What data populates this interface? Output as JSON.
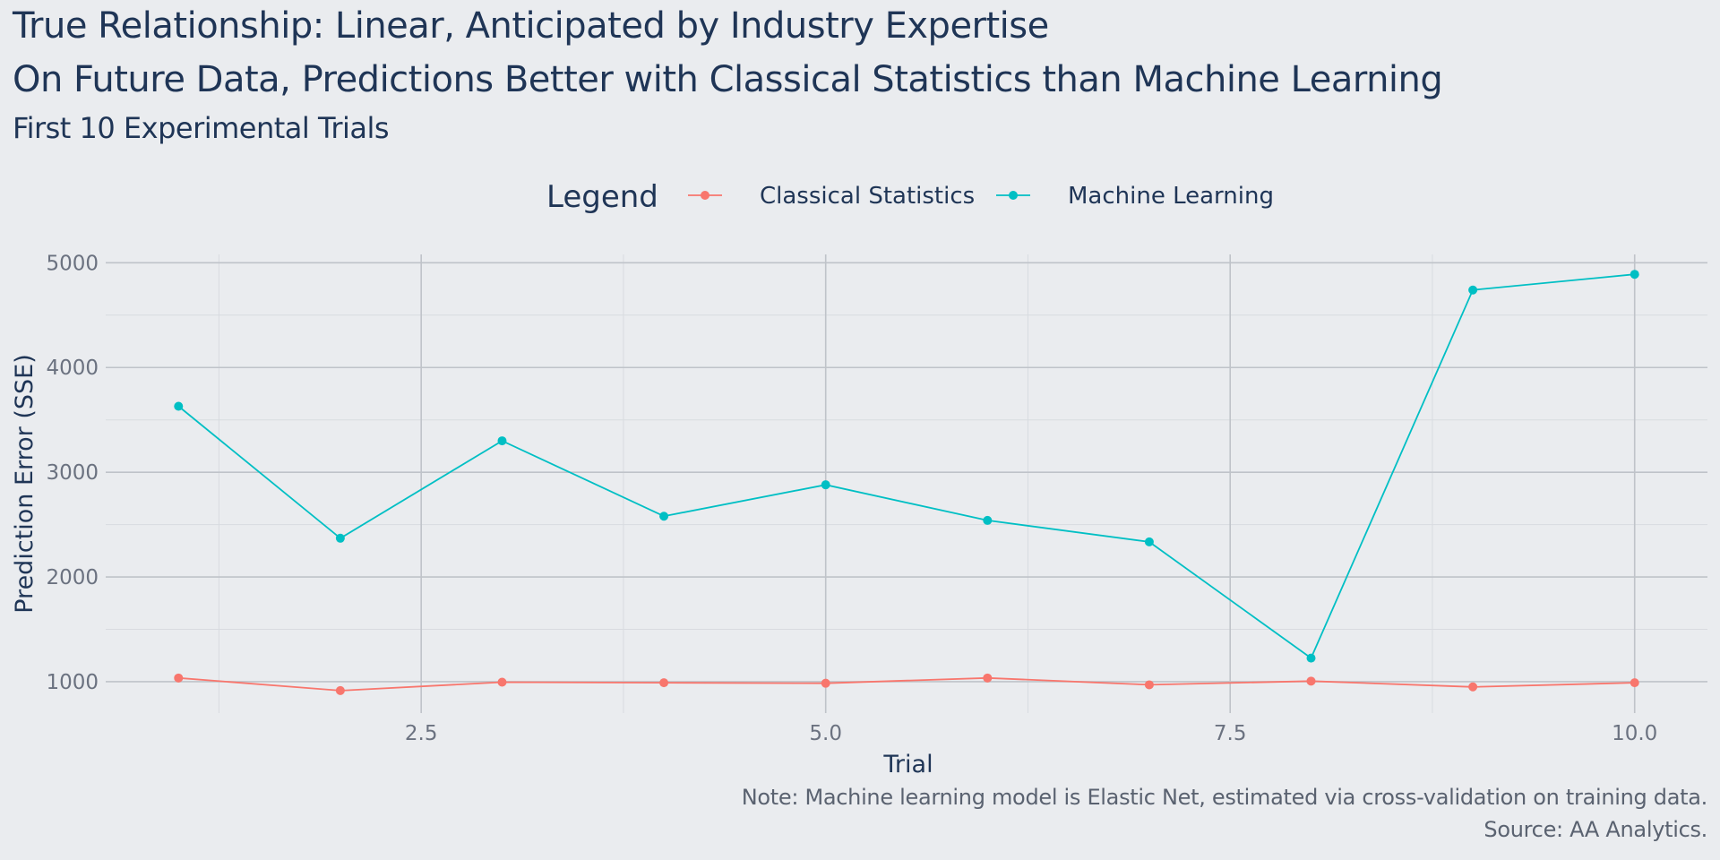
{
  "title": "True Relationship: Linear, Anticipated by Industry Expertise",
  "title2": "On Future Data, Predictions Better with Classical Statistics than Machine Learning",
  "subtitle": "First 10 Experimental Trials",
  "caption_note": "Note: Machine learning model is Elastic Net, estimated via cross-validation on training data.",
  "caption_source": "Source: AA Analytics.",
  "chart_data": {
    "type": "line",
    "title": "True Relationship: Linear, Anticipated by Industry Expertise",
    "subtitle": "On Future Data, Predictions Better with Classical Statistics than Machine Learning",
    "xlabel": "Trial",
    "ylabel": "Prediction Error (SSE)",
    "xlim": [
      0.55,
      10.45
    ],
    "ylim": [
      700,
      5080
    ],
    "x_ticks": [
      2.5,
      5.0,
      7.5,
      10.0
    ],
    "x_tick_labels": [
      "2.5",
      "5.0",
      "7.5",
      "10.0"
    ],
    "y_ticks": [
      1000,
      2000,
      3000,
      4000,
      5000
    ],
    "y_tick_labels": [
      "1000",
      "2000",
      "3000",
      "4000",
      "5000"
    ],
    "grid": true,
    "legend": {
      "title": "Legend",
      "position": "top"
    },
    "x": [
      1,
      2,
      3,
      4,
      5,
      6,
      7,
      8,
      9,
      10
    ],
    "series": [
      {
        "name": "Classical Statistics",
        "color": "#f8766d",
        "values": [
          1035,
          915,
          995,
          990,
          985,
          1035,
          970,
          1005,
          950,
          990
        ]
      },
      {
        "name": "Machine Learning",
        "color": "#00bfc4",
        "values": [
          3630,
          2370,
          3300,
          2580,
          2880,
          2540,
          2335,
          1225,
          4740,
          4890
        ]
      }
    ]
  }
}
